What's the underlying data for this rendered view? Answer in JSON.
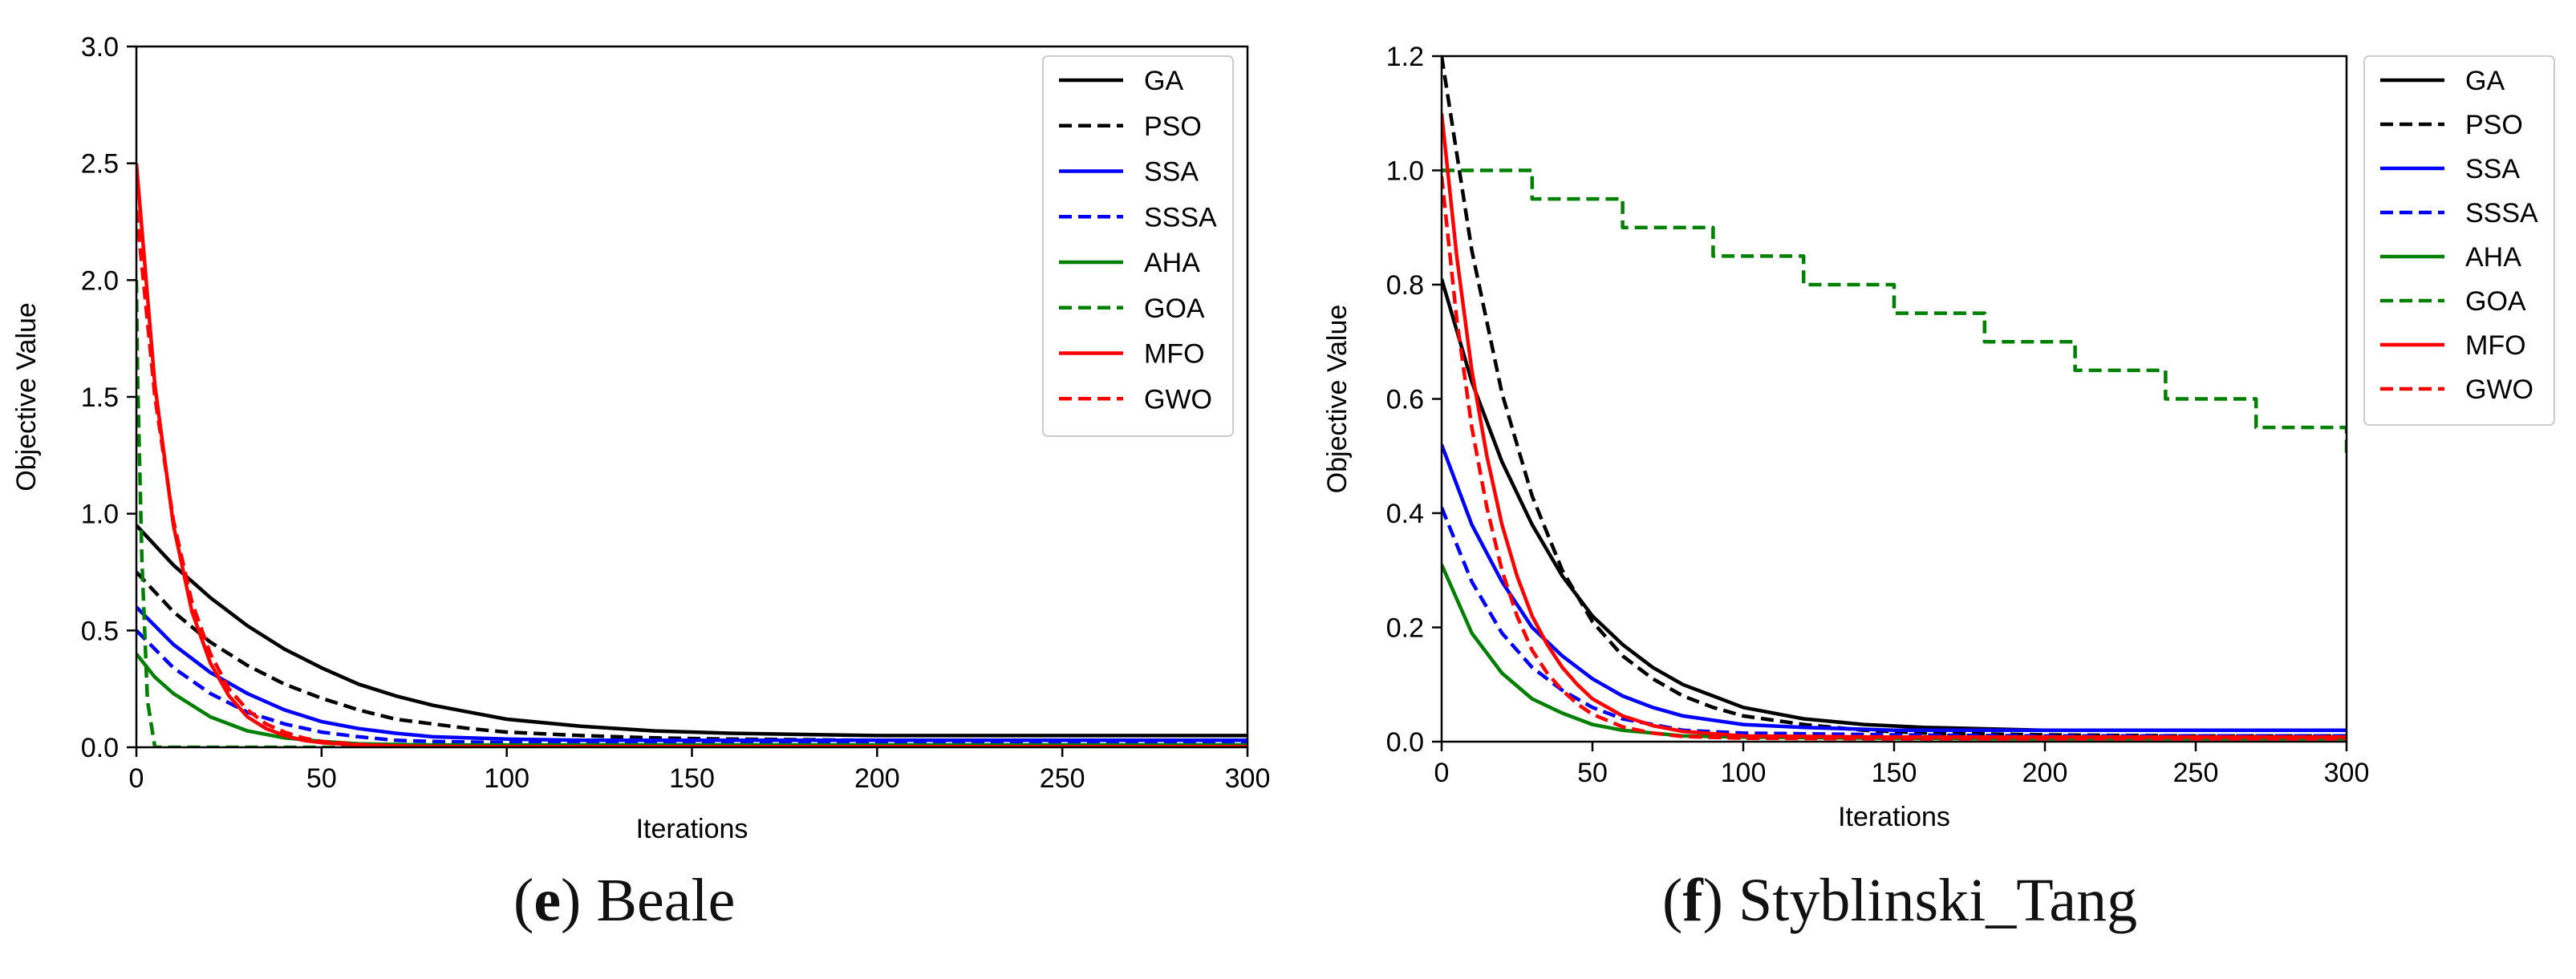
{
  "figure": {
    "panels": [
      {
        "letter": "e",
        "name": "Beale"
      },
      {
        "letter": "f",
        "name": "Styblinski_Tang"
      }
    ]
  },
  "colors": {
    "GA": "#000000",
    "PSO": "#000000",
    "SSA": "#0000ff",
    "SSSA": "#0000ff",
    "AHA": "#008000",
    "GOA": "#008000",
    "MFO": "#ff0000",
    "GWO": "#ff0000"
  },
  "chart_data": [
    {
      "type": "line",
      "title": "Beale",
      "xlabel": "Iterations",
      "ylabel": "Objective Value",
      "xlim": [
        0,
        300
      ],
      "ylim": [
        0,
        3.0
      ],
      "xticks": [
        0,
        50,
        100,
        150,
        200,
        250,
        300
      ],
      "yticks": [
        0.0,
        0.5,
        1.0,
        1.5,
        2.0,
        2.5,
        3.0
      ],
      "ytick_labels": [
        "0.0",
        "0.5",
        "1.0",
        "1.5",
        "2.0",
        "2.5",
        "3.0"
      ],
      "legend_position": "top-right-inside",
      "series": [
        {
          "name": "GA",
          "style": "solid",
          "color": "#000000",
          "x": [
            0,
            10,
            20,
            30,
            40,
            50,
            60,
            70,
            80,
            90,
            100,
            120,
            140,
            160,
            180,
            200,
            250,
            300
          ],
          "y": [
            0.95,
            0.78,
            0.64,
            0.52,
            0.42,
            0.34,
            0.27,
            0.22,
            0.18,
            0.15,
            0.12,
            0.09,
            0.07,
            0.06,
            0.055,
            0.05,
            0.05,
            0.05
          ]
        },
        {
          "name": "PSO",
          "style": "dashed",
          "color": "#000000",
          "x": [
            0,
            10,
            20,
            30,
            40,
            50,
            60,
            70,
            80,
            90,
            100,
            120,
            140,
            160,
            200,
            250,
            300
          ],
          "y": [
            0.75,
            0.58,
            0.45,
            0.35,
            0.27,
            0.21,
            0.16,
            0.12,
            0.1,
            0.08,
            0.065,
            0.05,
            0.04,
            0.035,
            0.03,
            0.03,
            0.03
          ]
        },
        {
          "name": "SSA",
          "style": "solid",
          "color": "#0000ff",
          "x": [
            0,
            10,
            20,
            30,
            40,
            50,
            60,
            70,
            80,
            100,
            120,
            150,
            200,
            250,
            300
          ],
          "y": [
            0.6,
            0.44,
            0.32,
            0.23,
            0.16,
            0.11,
            0.08,
            0.06,
            0.045,
            0.035,
            0.03,
            0.03,
            0.03,
            0.03,
            0.03
          ]
        },
        {
          "name": "SSSA",
          "style": "dashed",
          "color": "#0000ff",
          "x": [
            0,
            10,
            20,
            30,
            40,
            50,
            60,
            70,
            80,
            100,
            150,
            200,
            250,
            300
          ],
          "y": [
            0.5,
            0.34,
            0.23,
            0.15,
            0.1,
            0.065,
            0.045,
            0.03,
            0.025,
            0.02,
            0.02,
            0.02,
            0.02,
            0.02
          ]
        },
        {
          "name": "AHA",
          "style": "solid",
          "color": "#008000",
          "x": [
            0,
            5,
            10,
            20,
            30,
            40,
            50,
            60,
            70,
            80,
            100,
            150,
            200,
            250,
            300
          ],
          "y": [
            0.4,
            0.3,
            0.23,
            0.13,
            0.07,
            0.04,
            0.025,
            0.015,
            0.012,
            0.01,
            0.01,
            0.01,
            0.01,
            0.01,
            0.01
          ]
        },
        {
          "name": "GOA",
          "style": "dashed",
          "color": "#008000",
          "x": [
            0,
            0.3,
            1.5,
            3,
            5,
            300
          ],
          "y": [
            2.0,
            1.6,
            0.8,
            0.2,
            0.0,
            0.0
          ]
        },
        {
          "name": "MFO",
          "style": "solid",
          "color": "#ff0000",
          "x": [
            0,
            5,
            10,
            15,
            20,
            25,
            30,
            35,
            40,
            45,
            50,
            60,
            70,
            80,
            100,
            150,
            200,
            250,
            300
          ],
          "y": [
            2.5,
            1.55,
            0.95,
            0.58,
            0.36,
            0.22,
            0.13,
            0.08,
            0.05,
            0.03,
            0.02,
            0.01,
            0.005,
            0.003,
            0.002,
            0.002,
            0.002,
            0.002,
            0.002
          ]
        },
        {
          "name": "GWO",
          "style": "dashed",
          "color": "#ff0000",
          "x": [
            0,
            5,
            10,
            15,
            20,
            25,
            30,
            35,
            40,
            45,
            50,
            60,
            70,
            80,
            100,
            150,
            200,
            250,
            300
          ],
          "y": [
            2.3,
            1.5,
            0.97,
            0.62,
            0.4,
            0.25,
            0.16,
            0.1,
            0.065,
            0.04,
            0.025,
            0.012,
            0.006,
            0.003,
            0.002,
            0.002,
            0.002,
            0.002,
            0.002
          ]
        }
      ]
    },
    {
      "type": "line",
      "title": "Styblinski_Tang",
      "xlabel": "Iterations",
      "ylabel": "Objective Value",
      "xlim": [
        0,
        300
      ],
      "ylim": [
        0,
        1.2
      ],
      "xticks": [
        0,
        50,
        100,
        150,
        200,
        250,
        300
      ],
      "yticks": [
        0.0,
        0.2,
        0.4,
        0.6,
        0.8,
        1.0,
        1.2
      ],
      "ytick_labels": [
        "0.0",
        "0.2",
        "0.4",
        "0.6",
        "0.8",
        "1.0",
        "1.2"
      ],
      "legend_position": "outside-right",
      "series": [
        {
          "name": "GA",
          "style": "solid",
          "color": "#000000",
          "x": [
            0,
            10,
            20,
            30,
            40,
            50,
            60,
            70,
            80,
            90,
            100,
            120,
            140,
            160,
            200,
            250,
            300
          ],
          "y": [
            0.81,
            0.63,
            0.49,
            0.38,
            0.29,
            0.22,
            0.17,
            0.13,
            0.1,
            0.08,
            0.06,
            0.04,
            0.03,
            0.025,
            0.02,
            0.02,
            0.02
          ]
        },
        {
          "name": "PSO",
          "style": "dashed",
          "color": "#000000",
          "x": [
            0,
            10,
            20,
            30,
            40,
            50,
            60,
            70,
            80,
            90,
            100,
            120,
            140,
            160,
            200,
            250,
            300
          ],
          "y": [
            1.2,
            0.86,
            0.61,
            0.43,
            0.3,
            0.21,
            0.15,
            0.11,
            0.08,
            0.06,
            0.045,
            0.03,
            0.02,
            0.015,
            0.012,
            0.01,
            0.01
          ]
        },
        {
          "name": "SSA",
          "style": "solid",
          "color": "#0000ff",
          "x": [
            0,
            10,
            20,
            30,
            40,
            50,
            60,
            70,
            80,
            100,
            120,
            150,
            200,
            250,
            300
          ],
          "y": [
            0.52,
            0.38,
            0.28,
            0.2,
            0.15,
            0.11,
            0.08,
            0.06,
            0.045,
            0.03,
            0.025,
            0.02,
            0.02,
            0.02,
            0.02
          ]
        },
        {
          "name": "SSSA",
          "style": "dashed",
          "color": "#0000ff",
          "x": [
            0,
            10,
            20,
            30,
            40,
            50,
            60,
            70,
            80,
            100,
            150,
            200,
            250,
            300
          ],
          "y": [
            0.41,
            0.28,
            0.19,
            0.13,
            0.09,
            0.06,
            0.04,
            0.03,
            0.02,
            0.015,
            0.012,
            0.01,
            0.01,
            0.01
          ]
        },
        {
          "name": "AHA",
          "style": "solid",
          "color": "#008000",
          "x": [
            0,
            10,
            20,
            30,
            40,
            50,
            60,
            70,
            80,
            100,
            150,
            200,
            250,
            300
          ],
          "y": [
            0.31,
            0.19,
            0.12,
            0.075,
            0.05,
            0.03,
            0.02,
            0.015,
            0.01,
            0.008,
            0.006,
            0.005,
            0.005,
            0.005
          ]
        },
        {
          "name": "GOA",
          "style": "dashed",
          "color": "#008000",
          "x": [
            0,
            30,
            30,
            30,
            60,
            60,
            90,
            90,
            120,
            120,
            150,
            150,
            180,
            180,
            210,
            210,
            240,
            240,
            270,
            270,
            300,
            300
          ],
          "y": [
            1.0,
            1.0,
            0.95,
            0.95,
            0.95,
            0.9,
            0.9,
            0.85,
            0.85,
            0.8,
            0.8,
            0.75,
            0.75,
            0.7,
            0.7,
            0.65,
            0.65,
            0.6,
            0.6,
            0.55,
            0.55,
            0.5
          ]
        },
        {
          "name": "MFO",
          "style": "solid",
          "color": "#ff0000",
          "x": [
            0,
            5,
            10,
            15,
            20,
            25,
            30,
            35,
            40,
            45,
            50,
            60,
            70,
            80,
            100,
            150,
            200,
            250,
            300
          ],
          "y": [
            1.1,
            0.85,
            0.65,
            0.5,
            0.38,
            0.29,
            0.22,
            0.17,
            0.13,
            0.1,
            0.075,
            0.045,
            0.028,
            0.018,
            0.01,
            0.008,
            0.008,
            0.008,
            0.008
          ]
        },
        {
          "name": "GWO",
          "style": "dashed",
          "color": "#ff0000",
          "x": [
            0,
            5,
            10,
            15,
            20,
            25,
            30,
            35,
            40,
            45,
            50,
            60,
            70,
            80,
            100,
            150,
            200,
            250,
            300
          ],
          "y": [
            0.99,
            0.74,
            0.55,
            0.41,
            0.3,
            0.22,
            0.16,
            0.12,
            0.09,
            0.066,
            0.048,
            0.026,
            0.015,
            0.009,
            0.006,
            0.005,
            0.005,
            0.005,
            0.005
          ]
        }
      ]
    }
  ]
}
